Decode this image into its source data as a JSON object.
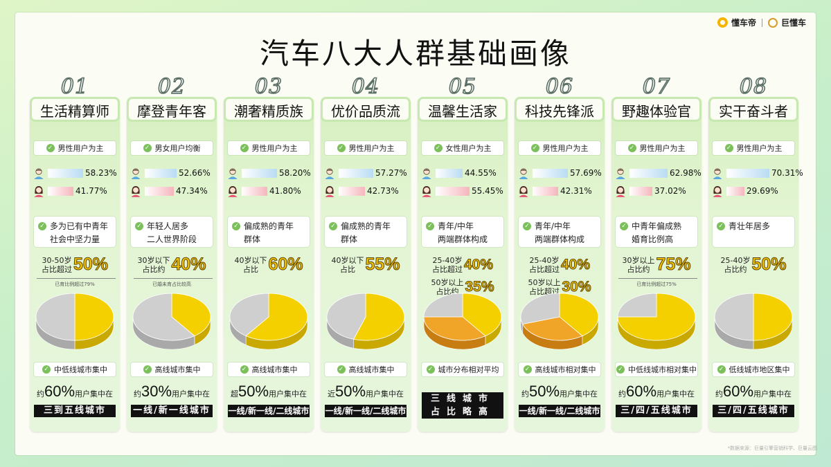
{
  "brand": {
    "name1": "懂车帝",
    "name2": "巨懂车"
  },
  "title": "汽车八大人群基础画像",
  "colors": {
    "yellow": "#f5d000",
    "gray": "#cfcfcf",
    "orange": "#f0a428",
    "card": "#d9f0c5"
  },
  "cards": [
    {
      "num": "01",
      "name": "生活精算师",
      "gender_tag": "男性用户为主",
      "male": "58.23%",
      "female": "41.77%",
      "male_value": 58.23,
      "age_tag_1": "多为已有中青年",
      "age_tag_2": "社会中坚力量",
      "stat1_small_1": "30-50岁",
      "stat1_small_2": "占比超过",
      "stat1_big": "50%",
      "stat2_small_1": "",
      "stat2_small_2": "",
      "stat2_big": "",
      "note": "已育比例超过79%",
      "pie": [
        {
          "value": 50,
          "color": "#f5d000"
        },
        {
          "value": 50,
          "color": "#cfcfcf"
        }
      ],
      "city_tag": "中低线城市集中",
      "city_prefix": "约",
      "city_big": "60%",
      "city_suffix": "用户集中在",
      "city_bar_1": "三到五线城市",
      "city_bar_2": ""
    },
    {
      "num": "02",
      "name": "摩登青年客",
      "gender_tag": "男女用户均衡",
      "male": "52.66%",
      "female": "47.34%",
      "male_value": 52.66,
      "age_tag_1": "年轻人居多",
      "age_tag_2": "二人世界阶段",
      "stat1_small_1": "30岁以下",
      "stat1_small_2": "占比约",
      "stat1_big": "40%",
      "stat2_small_1": "",
      "stat2_small_2": "",
      "stat2_big": "",
      "note": "已婚未育占比较高",
      "pie": [
        {
          "value": 40,
          "color": "#f5d000"
        },
        {
          "value": 60,
          "color": "#cfcfcf"
        }
      ],
      "city_tag": "高线城市集中",
      "city_prefix": "约",
      "city_big": "30%",
      "city_suffix": "用户集中在",
      "city_bar_1": "一线/新一线城市",
      "city_bar_2": ""
    },
    {
      "num": "03",
      "name": "潮奢精质族",
      "gender_tag": "男性用户为主",
      "male": "58.20%",
      "female": "41.80%",
      "male_value": 58.2,
      "age_tag_1": "偏成熟的青年",
      "age_tag_2": "群体",
      "stat1_small_1": "40岁以下",
      "stat1_small_2": "占比",
      "stat1_big": "60%",
      "stat2_small_1": "",
      "stat2_small_2": "",
      "stat2_big": "",
      "note": "",
      "pie": [
        {
          "value": 60,
          "color": "#f5d000"
        },
        {
          "value": 40,
          "color": "#cfcfcf"
        }
      ],
      "city_tag": "高线城市集中",
      "city_prefix": "超",
      "city_big": "50%",
      "city_suffix": "用户集中在",
      "city_bar_1": "一线/新一线/二线城市",
      "city_bar_2": ""
    },
    {
      "num": "04",
      "name": "优价品质流",
      "gender_tag": "男性用户为主",
      "male": "57.27%",
      "female": "42.73%",
      "male_value": 57.27,
      "age_tag_1": "偏成熟的青年",
      "age_tag_2": "群体",
      "stat1_small_1": "40岁以下",
      "stat1_small_2": "占比",
      "stat1_big": "55%",
      "stat2_small_1": "",
      "stat2_small_2": "",
      "stat2_big": "",
      "note": "",
      "pie": [
        {
          "value": 55,
          "color": "#f5d000"
        },
        {
          "value": 45,
          "color": "#cfcfcf"
        }
      ],
      "city_tag": "高线城市集中",
      "city_prefix": "近",
      "city_big": "50%",
      "city_suffix": "用户集中在",
      "city_bar_1": "一线/新一线/二线城市",
      "city_bar_2": ""
    },
    {
      "num": "05",
      "name": "温馨生活家",
      "gender_tag": "女性用户为主",
      "male": "44.55%",
      "female": "55.45%",
      "male_value": 44.55,
      "age_tag_1": "青年/中年",
      "age_tag_2": "两端群体构成",
      "stat1_small_1": "25-40岁",
      "stat1_small_2": "占比超过",
      "stat1_big": "40%",
      "stat2_small_1": "50岁以上",
      "stat2_small_2": "占比约",
      "stat2_big": "35%",
      "note": "",
      "pie": [
        {
          "value": 40,
          "color": "#f5d000"
        },
        {
          "value": 35,
          "color": "#f0a428"
        },
        {
          "value": 25,
          "color": "#cfcfcf"
        }
      ],
      "city_tag": "城市分布相对平均",
      "city_prefix": "",
      "city_big": "",
      "city_suffix": "",
      "city_bar_1": "三线城市",
      "city_bar_2": "占比略高"
    },
    {
      "num": "06",
      "name": "科技先锋派",
      "gender_tag": "男性用户为主",
      "male": "57.69%",
      "female": "42.31%",
      "male_value": 57.69,
      "age_tag_1": "青年/中年",
      "age_tag_2": "两端群体构成",
      "stat1_small_1": "25-40岁",
      "stat1_small_2": "占比超过",
      "stat1_big": "40%",
      "stat2_small_1": "50岁以上",
      "stat2_small_2": "占比超过",
      "stat2_big": "30%",
      "note": "",
      "pie": [
        {
          "value": 40,
          "color": "#f5d000"
        },
        {
          "value": 30,
          "color": "#f0a428"
        },
        {
          "value": 30,
          "color": "#cfcfcf"
        }
      ],
      "city_tag": "高线城市相对集中",
      "city_prefix": "约",
      "city_big": "50%",
      "city_suffix": "用户集中在",
      "city_bar_1": "一线/新一线/二线城市",
      "city_bar_2": ""
    },
    {
      "num": "07",
      "name": "野趣体验官",
      "gender_tag": "男性用户为主",
      "male": "62.98%",
      "female": "37.02%",
      "male_value": 62.98,
      "age_tag_1": "中青年偏成熟",
      "age_tag_2": "婚育比例高",
      "stat1_small_1": "30岁以上",
      "stat1_small_2": "占比约",
      "stat1_big": "75%",
      "stat2_small_1": "",
      "stat2_small_2": "",
      "stat2_big": "",
      "note": "已育比例超过75%",
      "pie": [
        {
          "value": 75,
          "color": "#f5d000"
        },
        {
          "value": 25,
          "color": "#cfcfcf"
        }
      ],
      "city_tag": "中低线城市相对集中",
      "city_prefix": "约",
      "city_big": "60%",
      "city_suffix": "用户集中在",
      "city_bar_1": "三/四/五线城市",
      "city_bar_2": ""
    },
    {
      "num": "08",
      "name": "实干奋斗者",
      "gender_tag": "男性用户为主",
      "male": "70.31%",
      "female": "29.69%",
      "male_value": 70.31,
      "age_tag_1": "青壮年居多",
      "age_tag_2": "",
      "stat1_small_1": "25-40岁",
      "stat1_small_2": "占比约",
      "stat1_big": "50%",
      "stat2_small_1": "",
      "stat2_small_2": "",
      "stat2_big": "",
      "note": "",
      "pie": [
        {
          "value": 50,
          "color": "#f5d000"
        },
        {
          "value": 50,
          "color": "#cfcfcf"
        }
      ],
      "city_tag": "低线城市地区集中",
      "city_prefix": "约",
      "city_big": "60%",
      "city_suffix": "用户集中在",
      "city_bar_1": "三/四/五线城市",
      "city_bar_2": ""
    }
  ],
  "footer": "*数据来源：巨量引擎营销科学、巨量云图"
}
